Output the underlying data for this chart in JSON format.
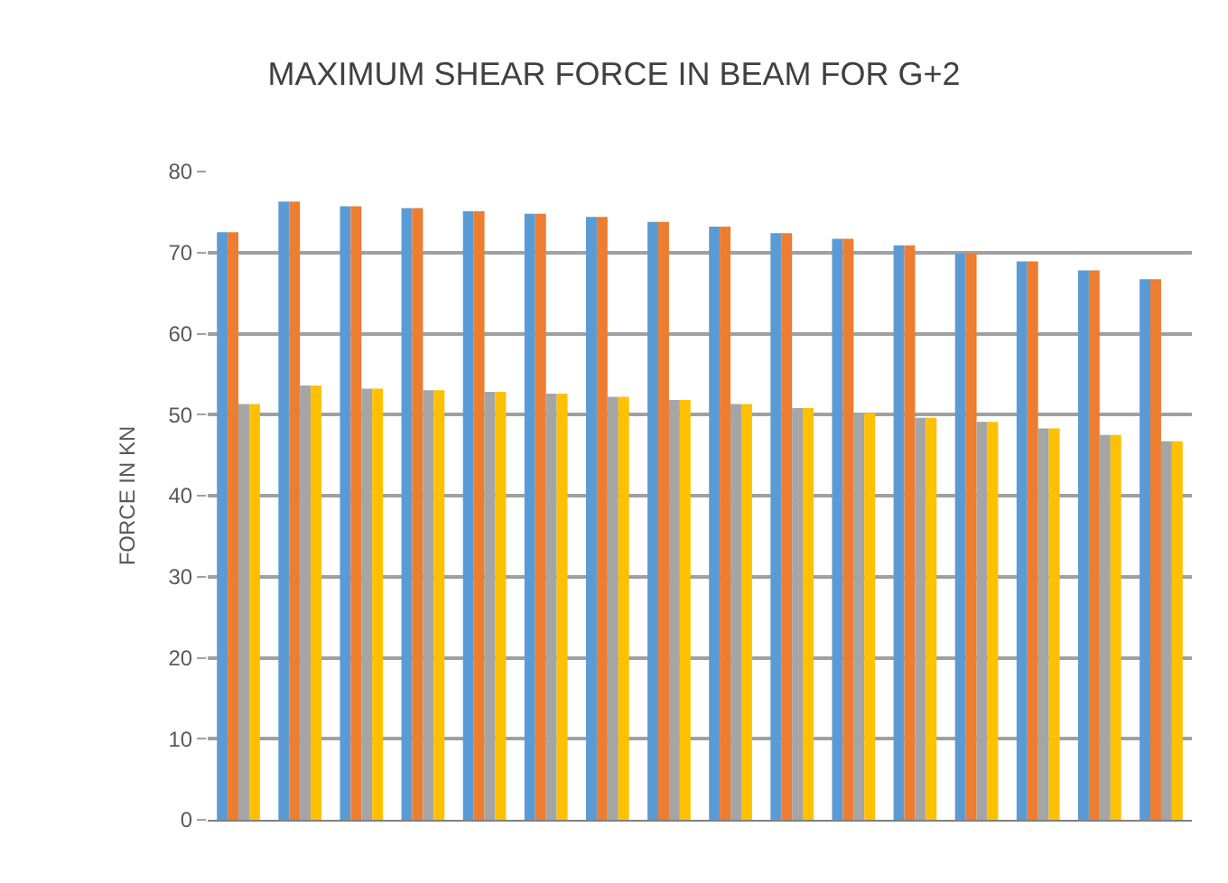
{
  "chart_data": {
    "type": "bar",
    "title": "MAXIMUM SHEAR FORCE IN BEAM FOR G+2",
    "ylabel": "FORCE IN KN",
    "categories": [
      null,
      null,
      null,
      null,
      null,
      null,
      null,
      null,
      null,
      null,
      null,
      null,
      null,
      null,
      null,
      null
    ],
    "series": [
      {
        "color": "#5b9bd5",
        "values": [
          72.5,
          76.3,
          75.7,
          75.5,
          75.1,
          74.8,
          74.4,
          73.8,
          73.2,
          72.4,
          71.7,
          70.9,
          69.9,
          68.9,
          67.8,
          66.7
        ]
      },
      {
        "color": "#ed7d31",
        "values": [
          72.5,
          76.3,
          75.7,
          75.5,
          75.1,
          74.8,
          74.4,
          73.8,
          73.2,
          72.4,
          71.7,
          70.9,
          69.9,
          68.9,
          67.8,
          66.7
        ]
      },
      {
        "color": "#a5a5a5",
        "values": [
          51.3,
          53.6,
          53.2,
          53.0,
          52.8,
          52.6,
          52.2,
          51.8,
          51.3,
          50.8,
          50.2,
          49.6,
          49.1,
          48.3,
          47.5,
          46.7
        ]
      },
      {
        "color": "#ffc000",
        "values": [
          51.3,
          53.6,
          53.2,
          53.0,
          52.8,
          52.6,
          52.2,
          51.8,
          51.3,
          50.8,
          50.2,
          49.6,
          49.1,
          48.3,
          47.5,
          46.7
        ]
      }
    ],
    "ylim": [
      0,
      80
    ],
    "yticks": [
      0,
      10,
      20,
      30,
      40,
      50,
      60,
      70,
      80
    ],
    "grid": "y"
  }
}
